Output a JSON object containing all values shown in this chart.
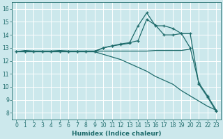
{
  "xlabel": "Humidex (Indice chaleur)",
  "xlim": [
    -0.5,
    23.5
  ],
  "ylim": [
    7.5,
    16.5
  ],
  "xticks": [
    0,
    1,
    2,
    3,
    4,
    5,
    6,
    7,
    8,
    9,
    10,
    11,
    12,
    13,
    14,
    15,
    16,
    17,
    18,
    19,
    20,
    21,
    22,
    23
  ],
  "yticks": [
    8,
    9,
    10,
    11,
    12,
    13,
    14,
    15,
    16
  ],
  "bg_color": "#cce8ec",
  "line_color": "#1e6b6b",
  "grid_color": "#ffffff",
  "line_diagonal_x": [
    0,
    1,
    2,
    3,
    4,
    5,
    6,
    7,
    8,
    9,
    10,
    11,
    12,
    13,
    14,
    15,
    16,
    17,
    18,
    19,
    20,
    21,
    22,
    23
  ],
  "line_diagonal_y": [
    12.7,
    12.7,
    12.7,
    12.7,
    12.7,
    12.7,
    12.7,
    12.7,
    12.7,
    12.7,
    12.5,
    12.3,
    12.1,
    11.8,
    11.5,
    11.2,
    10.8,
    10.5,
    10.2,
    9.7,
    9.3,
    8.9,
    8.5,
    8.2
  ],
  "line_flat_x": [
    0,
    1,
    2,
    3,
    4,
    5,
    6,
    7,
    8,
    9,
    10,
    11,
    12,
    13,
    14,
    15,
    16,
    17,
    18,
    19,
    20
  ],
  "line_flat_y": [
    12.7,
    12.8,
    12.75,
    12.75,
    12.75,
    12.8,
    12.75,
    12.75,
    12.75,
    12.75,
    12.75,
    12.75,
    12.75,
    12.75,
    12.75,
    12.75,
    12.8,
    12.8,
    12.8,
    12.8,
    12.9
  ],
  "line_peak_x": [
    0,
    1,
    2,
    3,
    4,
    5,
    6,
    7,
    8,
    9,
    10,
    11,
    12,
    13,
    14,
    15,
    16,
    17,
    18,
    19,
    20,
    21,
    22,
    23
  ],
  "line_peak_y": [
    12.7,
    12.75,
    12.75,
    12.75,
    12.75,
    12.75,
    12.75,
    12.75,
    12.75,
    12.75,
    13.0,
    13.15,
    13.25,
    13.35,
    14.7,
    15.7,
    14.7,
    14.7,
    14.5,
    14.1,
    13.0,
    10.3,
    9.3,
    8.2
  ],
  "line_grad_x": [
    0,
    1,
    2,
    3,
    4,
    5,
    6,
    7,
    8,
    9,
    10,
    11,
    12,
    13,
    14,
    15,
    16,
    17,
    18,
    19,
    20,
    21,
    22,
    23
  ],
  "line_grad_y": [
    12.7,
    12.7,
    12.7,
    12.7,
    12.7,
    12.7,
    12.7,
    12.7,
    12.7,
    12.7,
    13.0,
    13.15,
    13.3,
    13.4,
    13.55,
    15.2,
    14.75,
    14.0,
    14.0,
    14.1,
    14.1,
    10.2,
    9.2,
    8.1
  ]
}
